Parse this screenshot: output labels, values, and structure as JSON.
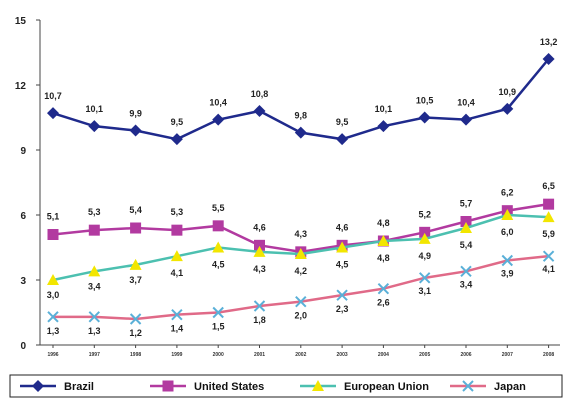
{
  "chart_data": {
    "type": "line",
    "title": "",
    "xlabel": "",
    "ylabel": "",
    "categories": [
      "1996",
      "1997",
      "1998",
      "1999",
      "2000",
      "2001",
      "2002",
      "2003",
      "2004",
      "2005",
      "2006",
      "2007",
      "2008"
    ],
    "ylim": [
      0,
      15
    ],
    "yticks": [
      "0",
      "3",
      "6",
      "9",
      "12",
      "15"
    ],
    "grid": false,
    "legend_position": "bottom",
    "series": [
      {
        "name": "Brazil",
        "color": "#1f2a8c",
        "marker": "diamond",
        "values": [
          10.7,
          10.1,
          9.9,
          9.5,
          10.4,
          10.8,
          9.8,
          9.5,
          10.1,
          10.5,
          10.4,
          10.9,
          13.2
        ],
        "labels": [
          "10,7",
          "10,1",
          "9,9",
          "9,5",
          "10,4",
          "10,8",
          "9,8",
          "9,5",
          "10,1",
          "10,5",
          "10,4",
          "10,9",
          "13,2"
        ]
      },
      {
        "name": "United States",
        "color": "#b23aa0",
        "marker": "square",
        "values": [
          5.1,
          5.3,
          5.4,
          5.3,
          5.5,
          4.6,
          4.3,
          4.6,
          4.8,
          5.2,
          5.7,
          6.2,
          6.5
        ],
        "labels": [
          "5,1",
          "5,3",
          "5,4",
          "5,3",
          "5,5",
          "4,6",
          "4,3",
          "4,6",
          "4,8",
          "5,2",
          "5,7",
          "6,2",
          "6,5"
        ]
      },
      {
        "name": "European Union",
        "color": "#4cc0b0",
        "marker": "triangle",
        "markerColor": "#f2e600",
        "values": [
          3.0,
          3.4,
          3.7,
          4.1,
          4.5,
          4.3,
          4.2,
          4.5,
          4.8,
          4.9,
          5.4,
          6.0,
          5.9
        ],
        "labels": [
          "3,0",
          "3,4",
          "3,7",
          "4,1",
          "4,5",
          "4,3",
          "4,2",
          "4,5",
          "4,8",
          "4,9",
          "5,4",
          "6,0",
          "5,9"
        ]
      },
      {
        "name": "Japan",
        "color": "#e06a88",
        "marker": "x",
        "markerColor": "#5ab0d8",
        "values": [
          1.3,
          1.3,
          1.2,
          1.4,
          1.5,
          1.8,
          2.0,
          2.3,
          2.6,
          3.1,
          3.4,
          3.9,
          4.1
        ],
        "labels": [
          "1,3",
          "1,3",
          "1,2",
          "1,4",
          "1,5",
          "1,8",
          "2,0",
          "2,3",
          "2,6",
          "3,1",
          "3,4",
          "3,9",
          "4,1"
        ]
      }
    ]
  }
}
